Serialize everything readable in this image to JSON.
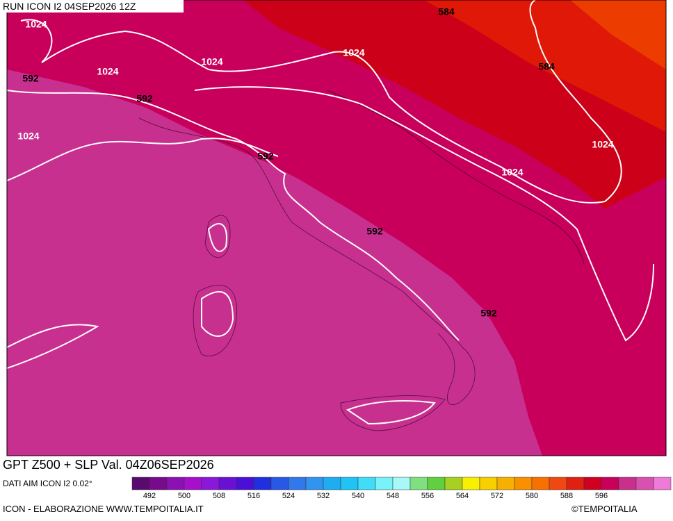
{
  "header": {
    "run": "RUN ICON I2 04SEP2026 12Z"
  },
  "footer": {
    "title": "GPT Z500 + SLP Val. 04Z06SEP2026",
    "source": "DATI AIM ICON I2 0.02°",
    "credit": "ICON - ELABORAZIONE WWW.TEMPOITALIA.IT",
    "copyright": "©TEMPOITALIA"
  },
  "colorbar": {
    "colors": [
      "#5a0a6e",
      "#780a8c",
      "#8c10b4",
      "#a410cc",
      "#8a18d8",
      "#6a10d4",
      "#4a10d8",
      "#2030e0",
      "#2858e4",
      "#3078ec",
      "#3094f0",
      "#20acf0",
      "#20c4f4",
      "#40dcf8",
      "#78f4f8",
      "#a8f8f8",
      "#80e080",
      "#60d040",
      "#a8d020",
      "#f8f000",
      "#f8d000",
      "#f8b000",
      "#f89000",
      "#f87000",
      "#f04810",
      "#e02010",
      "#d00020",
      "#c8005a",
      "#c8308c",
      "#d850b0",
      "#f07ad8"
    ],
    "labels": [
      "492",
      "500",
      "508",
      "516",
      "524",
      "532",
      "540",
      "548",
      "556",
      "564",
      "572",
      "580",
      "588",
      "596"
    ]
  },
  "contour_labels": [
    "1024",
    "1024",
    "1024",
    "1024",
    "584",
    "584",
    "1024",
    "1024",
    "592",
    "592",
    "592",
    "592",
    "592",
    "1024"
  ]
}
